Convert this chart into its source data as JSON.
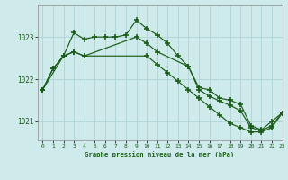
{
  "title": "Graphe pression niveau de la mer (hPa)",
  "bg_color": "#ceeaea",
  "grid_color": "#aed4d4",
  "line_color": "#1a5c1a",
  "marker_color": "#1a5c1a",
  "xlim": [
    -0.5,
    23
  ],
  "ylim": [
    1020.55,
    1023.75
  ],
  "yticks": [
    1021,
    1022,
    1023
  ],
  "xticks": [
    0,
    1,
    2,
    3,
    4,
    5,
    6,
    7,
    8,
    9,
    10,
    11,
    12,
    13,
    14,
    15,
    16,
    17,
    18,
    19,
    20,
    21,
    22,
    23
  ],
  "series1_x": [
    0,
    1,
    2,
    3,
    4,
    5,
    6,
    7,
    8,
    9,
    10,
    11,
    12,
    13,
    14,
    15,
    16,
    17,
    18,
    19,
    20,
    21,
    22,
    23
  ],
  "series1_y": [
    1021.75,
    1022.25,
    1022.55,
    1023.1,
    1022.95,
    1023.0,
    1023.0,
    1023.0,
    1023.05,
    1023.4,
    1023.2,
    1023.05,
    1022.85,
    1022.55,
    1022.3,
    1021.8,
    1021.75,
    1021.55,
    1021.5,
    1021.4,
    1020.9,
    1020.8,
    1021.0,
    1021.2
  ],
  "series2_x": [
    0,
    2,
    3,
    4,
    10,
    11,
    12,
    13,
    14,
    15,
    16,
    17,
    18,
    19,
    20,
    21,
    22,
    23
  ],
  "series2_y": [
    1021.75,
    1022.55,
    1022.65,
    1022.55,
    1022.55,
    1022.35,
    1022.15,
    1021.95,
    1021.75,
    1021.55,
    1021.35,
    1021.15,
    1020.95,
    1020.85,
    1020.75,
    1020.75,
    1020.85,
    1021.2
  ],
  "series3_x": [
    0,
    1,
    2,
    3,
    4,
    9,
    10,
    11,
    14,
    15,
    16,
    17,
    18,
    19,
    20,
    21,
    22,
    23
  ],
  "series3_y": [
    1021.75,
    1022.25,
    1022.55,
    1022.65,
    1022.55,
    1023.0,
    1022.85,
    1022.65,
    1022.3,
    1021.75,
    1021.6,
    1021.48,
    1021.38,
    1021.25,
    1020.85,
    1020.78,
    1020.9,
    1021.2
  ]
}
